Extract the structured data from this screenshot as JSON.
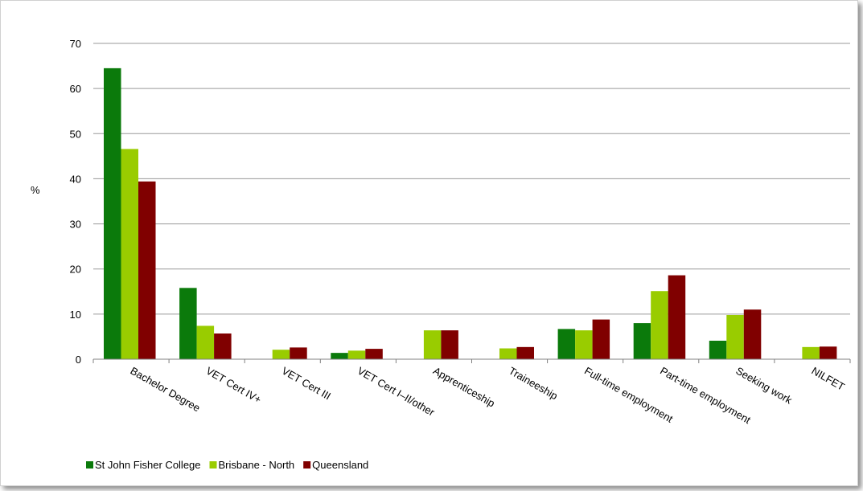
{
  "chart_data": {
    "type": "bar",
    "title": "",
    "xlabel": "",
    "ylabel": "%",
    "ylim": [
      0,
      70
    ],
    "yticks": [
      0,
      10,
      20,
      30,
      40,
      50,
      60,
      70
    ],
    "grid": true,
    "legend_position": "bottom-left",
    "categories": [
      "Bachelor Degree",
      "VET Cert IV+",
      "VET Cert III",
      "VET Cert I–II/other",
      "Apprenticeship",
      "Traineeship",
      "Full-time employment",
      "Part-time employment",
      "Seeking work",
      "NILFET"
    ],
    "series": [
      {
        "name": "St John Fisher College",
        "color": "#0b7a0b",
        "values": [
          64.5,
          15.8,
          0,
          1.4,
          0,
          0,
          6.7,
          8.0,
          4.1,
          0
        ]
      },
      {
        "name": "Brisbane - North",
        "color": "#99cc00",
        "values": [
          46.6,
          7.4,
          2.1,
          1.9,
          6.4,
          2.4,
          6.4,
          15.1,
          9.8,
          2.7
        ]
      },
      {
        "name": "Queensland",
        "color": "#800000",
        "values": [
          39.4,
          5.7,
          2.6,
          2.3,
          6.4,
          2.7,
          8.8,
          18.6,
          11.0,
          2.8
        ]
      }
    ]
  }
}
